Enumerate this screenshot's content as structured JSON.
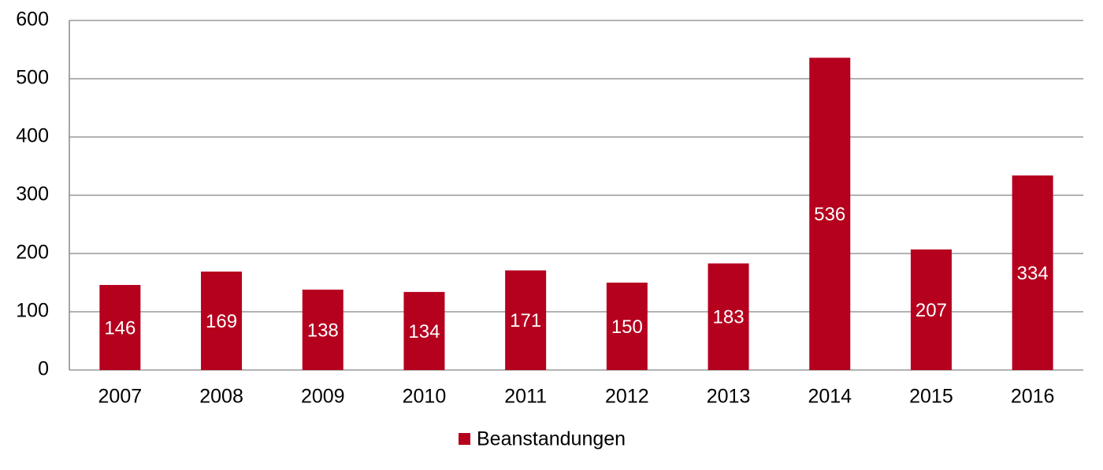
{
  "chart_data": {
    "type": "bar",
    "categories": [
      "2007",
      "2008",
      "2009",
      "2010",
      "2011",
      "2012",
      "2013",
      "2014",
      "2015",
      "2016"
    ],
    "series": [
      {
        "name": "Beanstandungen",
        "color": "#b5001e",
        "values": [
          146,
          169,
          138,
          134,
          171,
          150,
          183,
          536,
          207,
          334
        ]
      }
    ],
    "ylim": [
      0,
      600
    ],
    "yticks": [
      0,
      100,
      200,
      300,
      400,
      500,
      600
    ],
    "grid": true,
    "legend": "bottom"
  }
}
